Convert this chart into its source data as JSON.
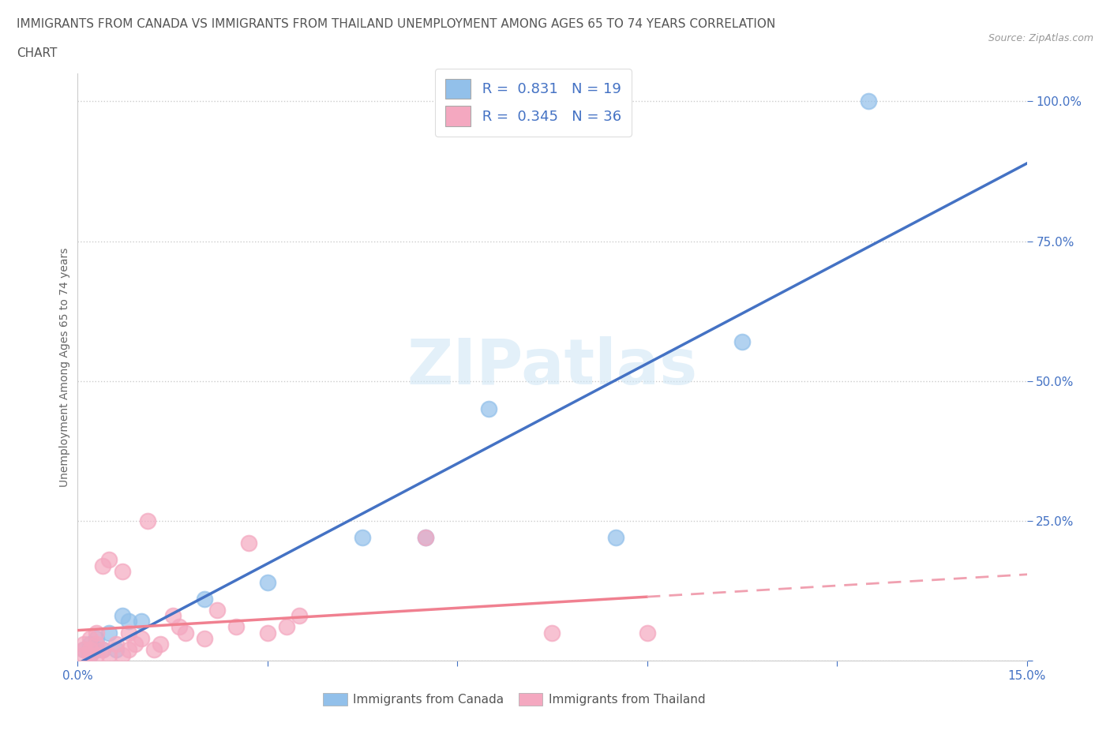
{
  "title_line1": "IMMIGRANTS FROM CANADA VS IMMIGRANTS FROM THAILAND UNEMPLOYMENT AMONG AGES 65 TO 74 YEARS CORRELATION",
  "title_line2": "CHART",
  "source": "Source: ZipAtlas.com",
  "ylabel": "Unemployment Among Ages 65 to 74 years",
  "xmin": 0.0,
  "xmax": 0.15,
  "ymin": 0.0,
  "ymax": 1.05,
  "canada_color": "#92C0EA",
  "thailand_color": "#F4A8C0",
  "canada_line_color": "#4472C4",
  "thailand_line_color": "#F08090",
  "thailand_dash_color": "#F0A0B0",
  "R_canada": 0.831,
  "N_canada": 19,
  "R_thailand": 0.345,
  "N_thailand": 36,
  "canada_scatter_x": [
    0.001,
    0.002,
    0.002,
    0.003,
    0.003,
    0.004,
    0.005,
    0.006,
    0.007,
    0.008,
    0.01,
    0.02,
    0.03,
    0.045,
    0.055,
    0.065,
    0.085,
    0.105,
    0.125
  ],
  "canada_scatter_y": [
    0.02,
    0.01,
    0.03,
    0.02,
    0.04,
    0.02,
    0.05,
    0.02,
    0.08,
    0.07,
    0.07,
    0.11,
    0.14,
    0.22,
    0.22,
    0.45,
    0.22,
    0.57,
    1.0
  ],
  "thailand_scatter_x": [
    0.001,
    0.001,
    0.001,
    0.002,
    0.002,
    0.002,
    0.003,
    0.003,
    0.003,
    0.004,
    0.004,
    0.005,
    0.005,
    0.006,
    0.007,
    0.007,
    0.008,
    0.008,
    0.009,
    0.01,
    0.011,
    0.012,
    0.013,
    0.015,
    0.016,
    0.017,
    0.02,
    0.022,
    0.025,
    0.027,
    0.03,
    0.033,
    0.035,
    0.055,
    0.075,
    0.09
  ],
  "thailand_scatter_y": [
    0.01,
    0.02,
    0.03,
    0.02,
    0.04,
    0.01,
    0.01,
    0.03,
    0.05,
    0.02,
    0.17,
    0.01,
    0.18,
    0.03,
    0.01,
    0.16,
    0.02,
    0.05,
    0.03,
    0.04,
    0.25,
    0.02,
    0.03,
    0.08,
    0.06,
    0.05,
    0.04,
    0.09,
    0.06,
    0.21,
    0.05,
    0.06,
    0.08,
    0.22,
    0.05,
    0.05
  ]
}
